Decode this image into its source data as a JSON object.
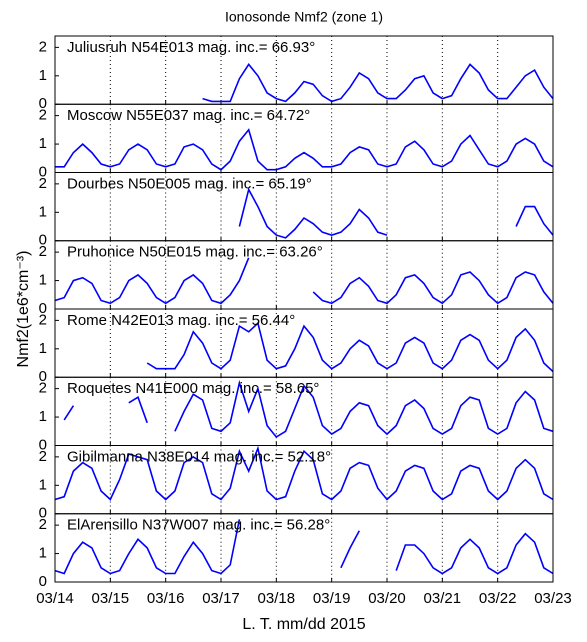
{
  "chart_data": [
    {
      "type": "line",
      "title": "Ionosonde Nmf2 (zone 1)",
      "y_label": "Nmf2(1e6*cm⁻³)",
      "label": "Juliusruh N54E013  mag. inc.= 66.93°",
      "color": "#0000ff",
      "x": [
        0,
        4,
        8,
        12,
        16,
        20,
        24,
        28,
        32,
        36,
        40,
        44,
        48,
        52,
        56,
        60,
        64,
        68,
        72,
        76,
        80,
        84,
        88,
        92,
        96,
        100,
        104,
        108,
        112,
        116,
        120,
        124,
        128,
        132,
        136,
        140,
        144,
        148,
        152,
        156,
        160,
        164,
        168,
        172,
        176,
        180,
        184,
        188,
        192,
        196,
        200,
        204,
        208,
        212,
        216
      ],
      "values": [
        null,
        null,
        null,
        null,
        null,
        null,
        null,
        null,
        null,
        null,
        null,
        null,
        null,
        null,
        null,
        null,
        0.2,
        0.1,
        0.1,
        0.1,
        0.9,
        1.4,
        1.0,
        0.4,
        0.2,
        0.1,
        0.4,
        0.8,
        0.7,
        0.3,
        0.1,
        0.2,
        0.6,
        1.1,
        0.9,
        0.4,
        0.2,
        0.2,
        0.5,
        0.9,
        1.0,
        0.4,
        0.2,
        0.3,
        0.9,
        1.4,
        1.1,
        0.5,
        0.2,
        0.2,
        0.6,
        1.0,
        1.2,
        0.6,
        0.2
      ],
      "xlim": [
        0,
        216
      ],
      "xticks": [
        0,
        24,
        48,
        72,
        96,
        120,
        144,
        168,
        192,
        216
      ],
      "ylim": [
        0,
        2.4
      ],
      "yticks": [
        0,
        1,
        2
      ],
      "grid": true
    },
    {
      "type": "line",
      "label": "Moscow N55E037  mag. inc.= 64.72°",
      "color": "#0000ff",
      "x": [
        0,
        4,
        8,
        12,
        16,
        20,
        24,
        28,
        32,
        36,
        40,
        44,
        48,
        52,
        56,
        60,
        64,
        68,
        72,
        76,
        80,
        84,
        88,
        92,
        96,
        100,
        104,
        108,
        112,
        116,
        120,
        124,
        128,
        132,
        136,
        140,
        144,
        148,
        152,
        156,
        160,
        164,
        168,
        172,
        176,
        180,
        184,
        188,
        192,
        196,
        200,
        204,
        208,
        212,
        216
      ],
      "values": [
        0.2,
        0.2,
        0.7,
        1.0,
        0.7,
        0.3,
        0.2,
        0.3,
        0.8,
        1.0,
        0.8,
        0.3,
        0.2,
        0.3,
        0.9,
        1.0,
        0.8,
        0.3,
        0.1,
        0.4,
        1.1,
        1.5,
        0.4,
        0.1,
        0.1,
        0.2,
        0.5,
        0.7,
        0.5,
        0.2,
        0.2,
        0.3,
        0.7,
        0.9,
        0.8,
        0.3,
        0.2,
        0.3,
        0.9,
        1.1,
        0.8,
        0.3,
        0.2,
        0.4,
        1.0,
        1.3,
        0.8,
        0.3,
        0.2,
        0.4,
        1.0,
        1.2,
        1.0,
        0.4,
        0.2
      ],
      "xlim": [
        0,
        216
      ],
      "xticks": [
        0,
        24,
        48,
        72,
        96,
        120,
        144,
        168,
        192,
        216
      ],
      "ylim": [
        0,
        2.4
      ],
      "yticks": [
        0,
        1,
        2
      ],
      "grid": true
    },
    {
      "type": "line",
      "label": "Dourbes N50E005  mag. inc.= 65.19°",
      "color": "#0000ff",
      "x": [
        0,
        4,
        8,
        12,
        16,
        20,
        24,
        28,
        32,
        36,
        40,
        44,
        48,
        52,
        56,
        60,
        64,
        68,
        72,
        76,
        80,
        84,
        88,
        92,
        96,
        100,
        104,
        108,
        112,
        116,
        120,
        124,
        128,
        132,
        136,
        140,
        144,
        148,
        152,
        156,
        160,
        164,
        168,
        172,
        176,
        180,
        184,
        188,
        192,
        196,
        200,
        204,
        208,
        212,
        216
      ],
      "values": [
        null,
        null,
        null,
        null,
        null,
        null,
        null,
        null,
        null,
        null,
        null,
        null,
        null,
        null,
        null,
        null,
        null,
        null,
        null,
        null,
        0.5,
        1.8,
        1.2,
        0.5,
        0.2,
        0.1,
        0.4,
        0.8,
        0.6,
        0.3,
        0.2,
        0.3,
        0.6,
        1.1,
        0.8,
        0.3,
        0.2,
        null,
        null,
        null,
        null,
        null,
        null,
        null,
        null,
        null,
        null,
        null,
        null,
        null,
        0.5,
        1.2,
        1.2,
        0.6,
        0.2
      ],
      "xlim": [
        0,
        216
      ],
      "xticks": [
        0,
        24,
        48,
        72,
        96,
        120,
        144,
        168,
        192,
        216
      ],
      "ylim": [
        0,
        2.4
      ],
      "yticks": [
        0,
        1,
        2
      ],
      "grid": true
    },
    {
      "type": "line",
      "label": "Pruhonice N50E015  mag. inc.= 63.26°",
      "color": "#0000ff",
      "x": [
        0,
        4,
        8,
        12,
        16,
        20,
        24,
        28,
        32,
        36,
        40,
        44,
        48,
        52,
        56,
        60,
        64,
        68,
        72,
        76,
        80,
        84,
        88,
        92,
        96,
        100,
        104,
        108,
        112,
        116,
        120,
        124,
        128,
        132,
        136,
        140,
        144,
        148,
        152,
        156,
        160,
        164,
        168,
        172,
        176,
        180,
        184,
        188,
        192,
        196,
        200,
        204,
        208,
        212,
        216
      ],
      "values": [
        0.3,
        0.4,
        1.0,
        1.1,
        0.9,
        0.3,
        0.2,
        0.4,
        1.0,
        1.2,
        0.9,
        0.4,
        0.2,
        0.4,
        1.0,
        1.2,
        0.9,
        0.3,
        0.2,
        0.5,
        1.0,
        1.8,
        null,
        null,
        null,
        null,
        null,
        null,
        0.6,
        0.3,
        0.2,
        0.4,
        0.9,
        1.1,
        0.8,
        0.3,
        0.2,
        0.5,
        1.1,
        1.2,
        0.9,
        0.4,
        0.2,
        0.5,
        1.2,
        1.3,
        1.0,
        0.5,
        0.2,
        0.4,
        1.1,
        1.3,
        1.2,
        0.6,
        0.2
      ],
      "xlim": [
        0,
        216
      ],
      "xticks": [
        0,
        24,
        48,
        72,
        96,
        120,
        144,
        168,
        192,
        216
      ],
      "ylim": [
        0,
        2.4
      ],
      "yticks": [
        0,
        1,
        2
      ],
      "grid": true
    },
    {
      "type": "line",
      "label": "Rome N42E013  mag. inc.= 56.44°",
      "color": "#0000ff",
      "x": [
        0,
        4,
        8,
        12,
        16,
        20,
        24,
        28,
        32,
        36,
        40,
        44,
        48,
        52,
        56,
        60,
        64,
        68,
        72,
        76,
        80,
        84,
        88,
        92,
        96,
        100,
        104,
        108,
        112,
        116,
        120,
        124,
        128,
        132,
        136,
        140,
        144,
        148,
        152,
        156,
        160,
        164,
        168,
        172,
        176,
        180,
        184,
        188,
        192,
        196,
        200,
        204,
        208,
        212,
        216
      ],
      "values": [
        null,
        null,
        null,
        null,
        null,
        null,
        null,
        null,
        null,
        null,
        0.5,
        0.3,
        0.3,
        0.3,
        0.8,
        1.6,
        1.2,
        0.5,
        0.3,
        0.6,
        1.8,
        1.6,
        1.9,
        0.6,
        0.3,
        0.4,
        1.0,
        1.8,
        1.4,
        0.6,
        0.3,
        0.5,
        1.0,
        1.3,
        1.1,
        0.5,
        0.3,
        0.5,
        1.2,
        1.4,
        1.2,
        0.5,
        0.3,
        0.6,
        1.3,
        1.5,
        1.3,
        0.6,
        0.3,
        0.6,
        1.4,
        1.7,
        1.3,
        0.5,
        0.2
      ],
      "xlim": [
        0,
        216
      ],
      "xticks": [
        0,
        24,
        48,
        72,
        96,
        120,
        144,
        168,
        192,
        216
      ],
      "ylim": [
        0,
        2.4
      ],
      "yticks": [
        0,
        1,
        2
      ],
      "grid": true
    },
    {
      "type": "line",
      "label": "Roquetes N41E000  mag. inc.= 58.65°",
      "color": "#0000ff",
      "x": [
        0,
        4,
        8,
        12,
        16,
        20,
        24,
        28,
        32,
        36,
        40,
        44,
        48,
        52,
        56,
        60,
        64,
        68,
        72,
        76,
        80,
        84,
        88,
        92,
        96,
        100,
        104,
        108,
        112,
        116,
        120,
        124,
        128,
        132,
        136,
        140,
        144,
        148,
        152,
        156,
        160,
        164,
        168,
        172,
        176,
        180,
        184,
        188,
        192,
        196,
        200,
        204,
        208,
        212,
        216
      ],
      "values": [
        null,
        0.9,
        1.4,
        null,
        null,
        null,
        null,
        null,
        1.5,
        1.7,
        0.8,
        null,
        null,
        0.5,
        1.2,
        1.8,
        1.6,
        0.6,
        0.5,
        0.8,
        2.2,
        1.2,
        2.0,
        0.7,
        0.3,
        0.5,
        1.3,
        2.1,
        1.7,
        0.7,
        0.4,
        0.6,
        1.2,
        1.5,
        1.4,
        0.7,
        0.4,
        0.7,
        1.4,
        1.6,
        1.3,
        0.6,
        0.4,
        0.6,
        1.4,
        1.7,
        1.6,
        0.6,
        0.4,
        0.6,
        1.5,
        1.9,
        1.6,
        0.6,
        0.5
      ],
      "xlim": [
        0,
        216
      ],
      "xticks": [
        0,
        24,
        48,
        72,
        96,
        120,
        144,
        168,
        192,
        216
      ],
      "ylim": [
        0,
        2.4
      ],
      "yticks": [
        0,
        1,
        2
      ],
      "grid": true
    },
    {
      "type": "line",
      "label": "Gibilmanna N38E014  mag. inc.= 52.18°",
      "color": "#0000ff",
      "x": [
        0,
        4,
        8,
        12,
        16,
        20,
        24,
        28,
        32,
        36,
        40,
        44,
        48,
        52,
        56,
        60,
        64,
        68,
        72,
        76,
        80,
        84,
        88,
        92,
        96,
        100,
        104,
        108,
        112,
        116,
        120,
        124,
        128,
        132,
        136,
        140,
        144,
        148,
        152,
        156,
        160,
        164,
        168,
        172,
        176,
        180,
        184,
        188,
        192,
        196,
        200,
        204,
        208,
        212,
        216
      ],
      "values": [
        0.5,
        0.6,
        1.5,
        1.8,
        1.6,
        0.8,
        0.5,
        1.2,
        2.1,
        2.0,
        1.9,
        0.8,
        0.5,
        0.8,
        1.8,
        2.0,
        1.8,
        0.7,
        0.5,
        0.9,
        2.2,
        1.5,
        2.3,
        0.8,
        0.5,
        0.6,
        1.5,
        2.2,
        1.9,
        0.7,
        0.5,
        0.8,
        1.6,
        1.8,
        1.7,
        0.9,
        0.5,
        0.8,
        1.5,
        1.7,
        1.6,
        0.8,
        0.5,
        0.7,
        1.5,
        1.7,
        1.6,
        0.8,
        0.5,
        0.8,
        1.6,
        1.9,
        1.6,
        0.7,
        0.5
      ],
      "xlim": [
        0,
        216
      ],
      "xticks": [
        0,
        24,
        48,
        72,
        96,
        120,
        144,
        168,
        192,
        216
      ],
      "ylim": [
        0,
        2.4
      ],
      "yticks": [
        0,
        1,
        2
      ],
      "grid": true
    },
    {
      "type": "line",
      "label": "ElArensillo N37W007  mag. inc.= 56.28°",
      "x_label": "L. T. mm/dd 2015",
      "color": "#0000ff",
      "x": [
        0,
        4,
        8,
        12,
        16,
        20,
        24,
        28,
        32,
        36,
        40,
        44,
        48,
        52,
        56,
        60,
        64,
        68,
        72,
        76,
        80,
        84,
        88,
        92,
        96,
        100,
        104,
        108,
        112,
        116,
        120,
        124,
        128,
        132,
        136,
        140,
        144,
        148,
        152,
        156,
        160,
        164,
        168,
        172,
        176,
        180,
        184,
        188,
        192,
        196,
        200,
        204,
        208,
        212,
        216
      ],
      "values": [
        0.4,
        0.3,
        1.0,
        1.4,
        1.2,
        0.5,
        0.3,
        0.4,
        1.0,
        1.5,
        1.2,
        0.5,
        0.3,
        0.3,
        0.9,
        1.4,
        1.0,
        0.4,
        0.3,
        0.6,
        2.2,
        null,
        null,
        null,
        null,
        null,
        null,
        null,
        null,
        null,
        null,
        0.5,
        1.2,
        1.8,
        null,
        null,
        null,
        0.4,
        1.3,
        1.3,
        1.0,
        0.5,
        0.3,
        0.5,
        1.2,
        1.5,
        1.2,
        0.5,
        0.3,
        0.5,
        1.3,
        1.7,
        1.4,
        0.5,
        0.3
      ],
      "xlim": [
        0,
        216
      ],
      "xticks": [
        {
          "value": 0,
          "label": "03/14"
        },
        {
          "value": 24,
          "label": "03/15"
        },
        {
          "value": 48,
          "label": "03/16"
        },
        {
          "value": 72,
          "label": "03/17"
        },
        {
          "value": 96,
          "label": "03/18"
        },
        {
          "value": 120,
          "label": "03/19"
        },
        {
          "value": 144,
          "label": "03/20"
        },
        {
          "value": 168,
          "label": "03/21"
        },
        {
          "value": 192,
          "label": "03/22"
        },
        {
          "value": 216,
          "label": "03/23"
        }
      ],
      "ylim": [
        0,
        2.4
      ],
      "yticks": [
        0,
        1,
        2
      ],
      "grid": true
    }
  ]
}
